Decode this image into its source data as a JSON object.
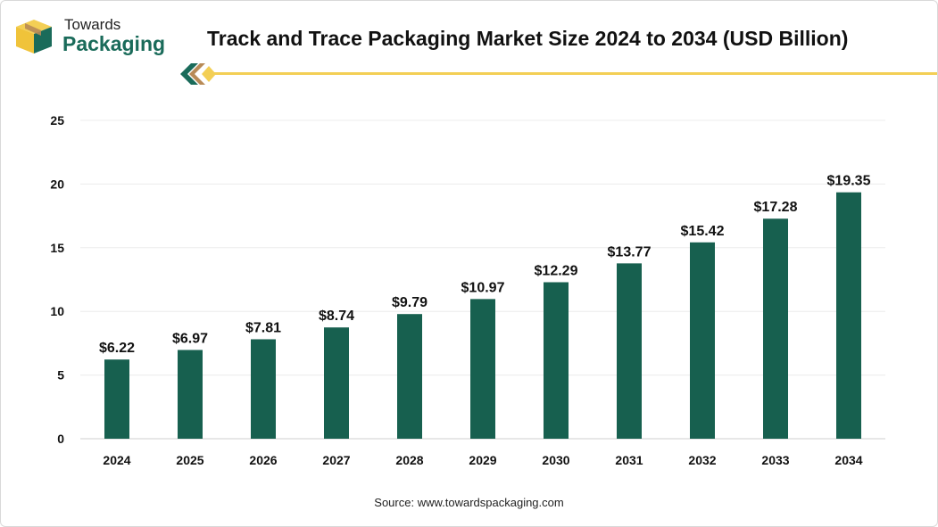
{
  "brand": {
    "name_top": "Towards",
    "name_bottom": "Packaging",
    "icon": "box-logo-icon",
    "colors": {
      "green": "#1a6b5a",
      "gold": "#f3cf55",
      "brown": "#b88a56"
    }
  },
  "title": "Track and Trace Packaging Market Size 2024 to 2034 (USD Billion)",
  "source": "Source: www.towardspackaging.com",
  "chart_data": {
    "type": "bar",
    "title": "Track and Trace Packaging Market Size 2024 to 2034 (USD Billion)",
    "xlabel": "",
    "ylabel": "",
    "categories": [
      "2024",
      "2025",
      "2026",
      "2027",
      "2028",
      "2029",
      "2030",
      "2031",
      "2032",
      "2033",
      "2034"
    ],
    "values": [
      6.22,
      6.97,
      7.81,
      8.74,
      9.79,
      10.97,
      12.29,
      13.77,
      15.42,
      17.28,
      19.35
    ],
    "value_labels": [
      "$6.22",
      "$6.97",
      "$7.81",
      "$8.74",
      "$9.79",
      "$10.97",
      "$12.29",
      "$13.77",
      "$15.42",
      "$17.28",
      "$19.35"
    ],
    "ylim": [
      0,
      25
    ],
    "yticks": [
      "0",
      "5",
      "10",
      "15",
      "20",
      "25"
    ],
    "grid": true,
    "bar_color": "#17604f",
    "legend": "none"
  }
}
